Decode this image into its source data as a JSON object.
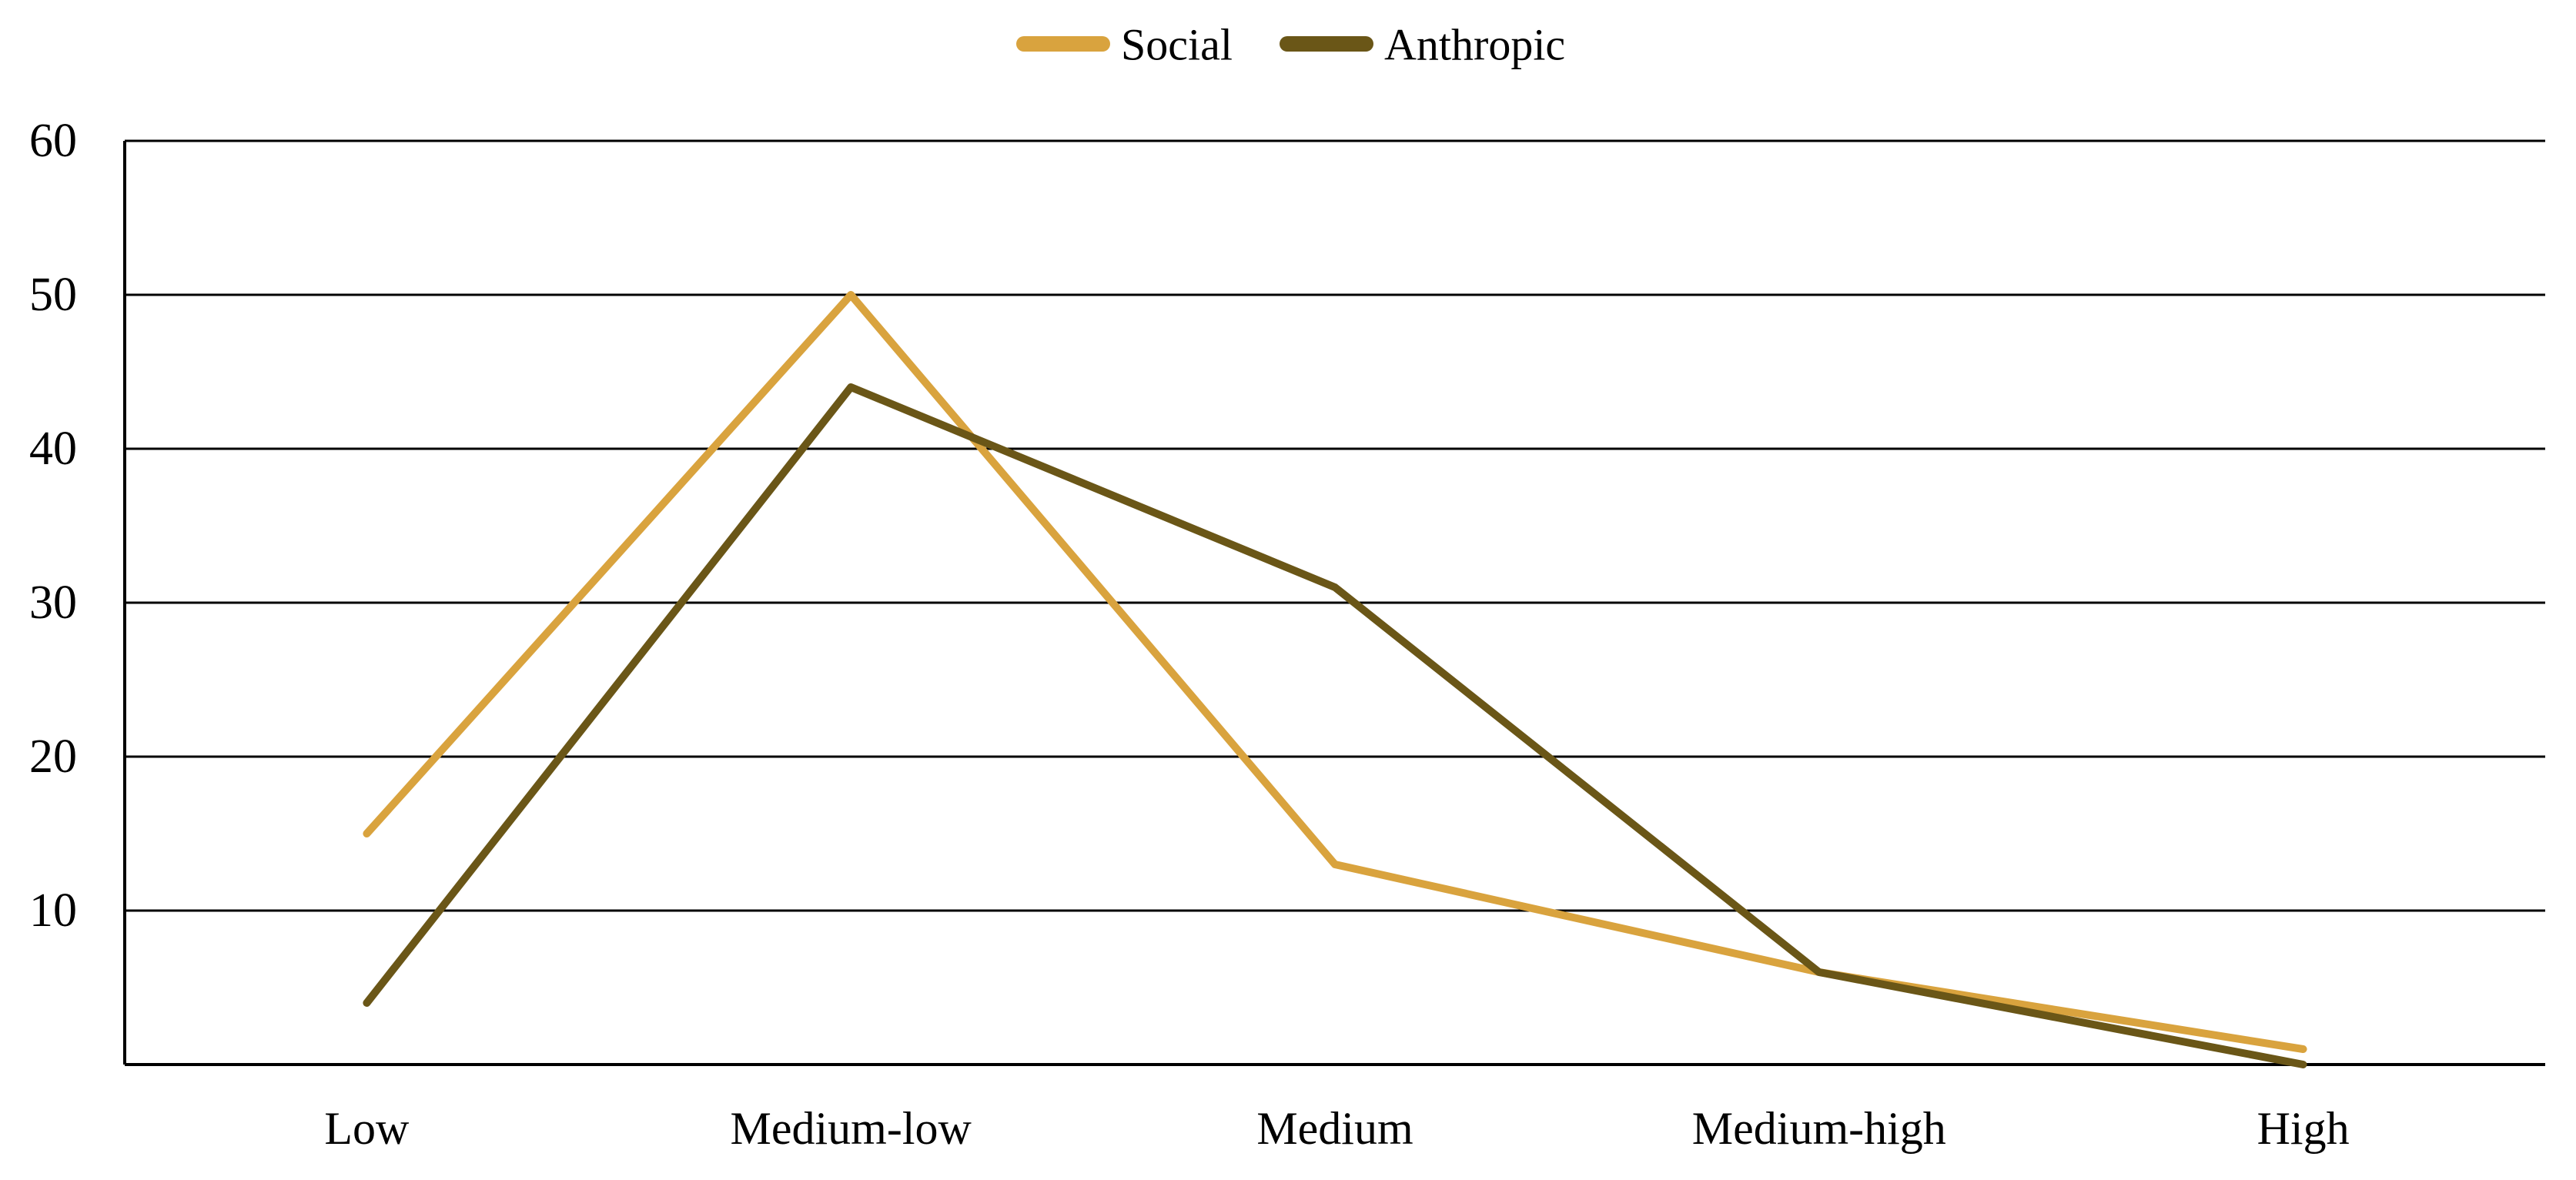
{
  "chart_data": {
    "type": "line",
    "title": "",
    "xlabel": "",
    "ylabel": "",
    "categories": [
      "Low",
      "Medium-low",
      "Medium",
      "Medium-high",
      "High"
    ],
    "series": [
      {
        "name": "Social",
        "color": "#D9A33E",
        "values": [
          15,
          50,
          13,
          6,
          1
        ]
      },
      {
        "name": "Anthropic",
        "color": "#6A5617",
        "values": [
          4,
          44,
          31,
          6,
          0
        ]
      }
    ],
    "ylim": [
      0,
      60
    ],
    "ytick_step": 10,
    "ytick_labels": [
      "10",
      "20",
      "30",
      "40",
      "50",
      "60"
    ],
    "grid": "horizontal",
    "gridline_color": "#000000",
    "axis_color": "#000000",
    "background": "#FFFFFF",
    "legend_position": "top-center"
  }
}
